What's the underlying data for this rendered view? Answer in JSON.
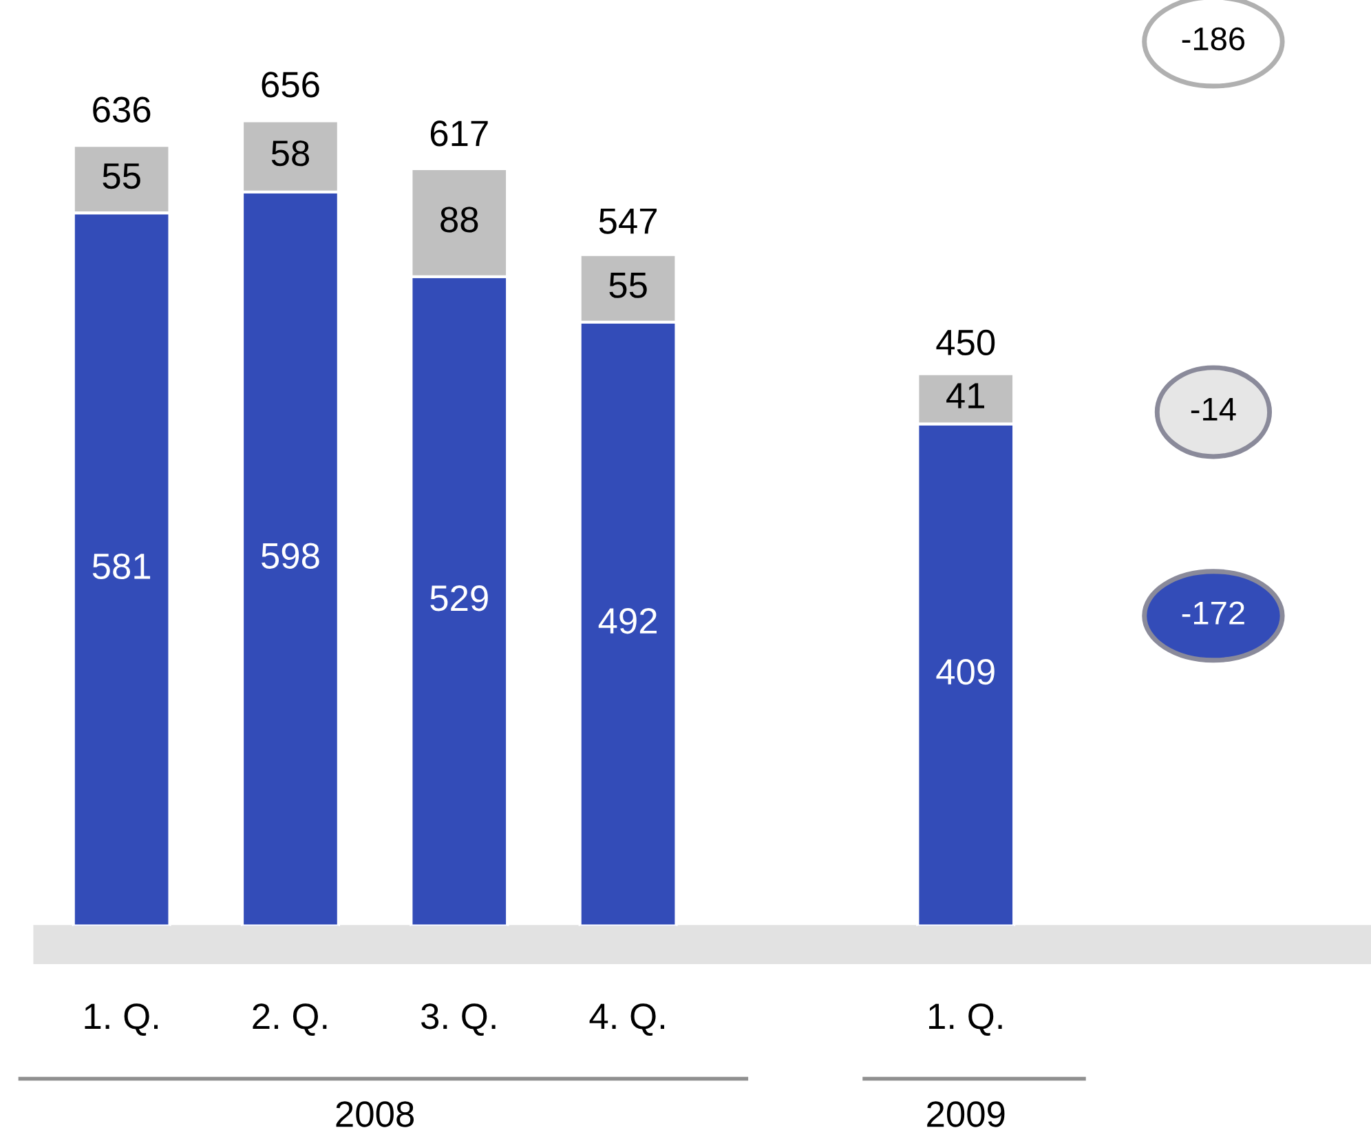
{
  "chart_data": {
    "type": "bar",
    "stacked": true,
    "data_labels": true,
    "categories": [
      "1. Q.",
      "2. Q.",
      "3. Q.",
      "4. Q.",
      null,
      "1. Q."
    ],
    "series": [
      {
        "color": "#334cb8",
        "values": [
          581,
          598,
          529,
          492,
          null,
          409
        ]
      },
      {
        "color": "#c0c0c0",
        "values": [
          55,
          58,
          88,
          55,
          null,
          41
        ]
      }
    ],
    "totals": [
      "636",
      "656",
      "617",
      "547",
      null,
      "450"
    ],
    "annotations": [
      "2008",
      "2009",
      "-186",
      "-14",
      "-172"
    ],
    "grid": false
  }
}
